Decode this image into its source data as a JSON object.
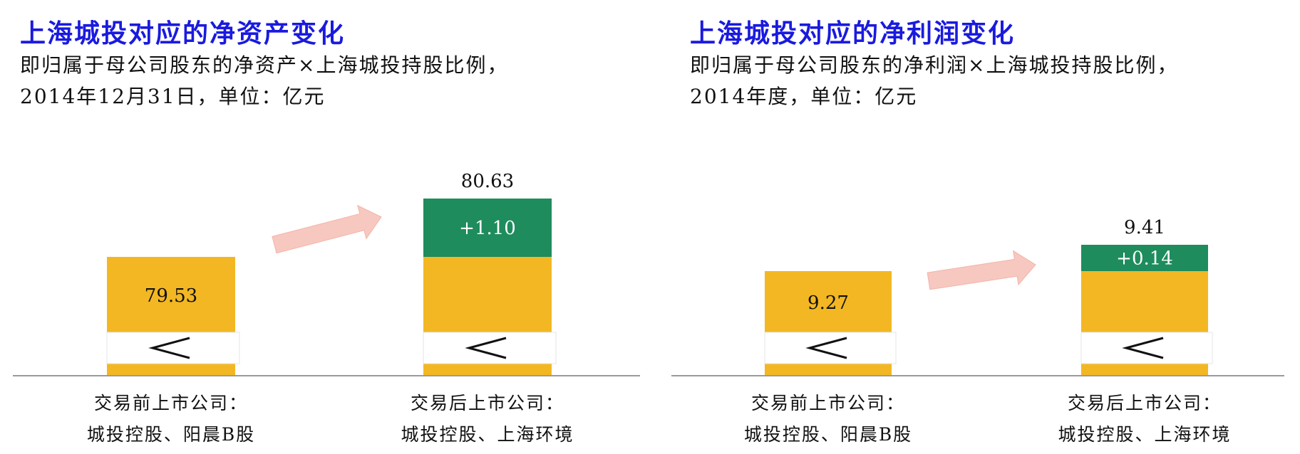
{
  "chart_data": [
    {
      "type": "bar",
      "title": "上海城投对应的净资产变化",
      "subtitle_line1": "即归属于母公司股东的净资产×上海城投持股比例，",
      "subtitle_line2": "2014年12月31日，单位：亿元",
      "categories": [
        [
          "交易前上市公司：",
          "城投控股、阳晨B股"
        ],
        [
          "交易后上市公司：",
          "城投控股、上海环境"
        ]
      ],
      "base_values": [
        79.53,
        79.53
      ],
      "increment": 1.1,
      "increment_label": "+1.10",
      "value_labels": [
        "79.53",
        "80.63"
      ],
      "axis_break": true,
      "colors": {
        "base": "#f2b723",
        "increment": "#1e8c5c",
        "arrow": "#f7c8c0"
      }
    },
    {
      "type": "bar",
      "title": "上海城投对应的净利润变化",
      "subtitle_line1": "即归属于母公司股东的净利润×上海城投持股比例，",
      "subtitle_line2": "2014年度，单位：亿元",
      "categories": [
        [
          "交易前上市公司：",
          "城投控股、阳晨B股"
        ],
        [
          "交易后上市公司：",
          "城投控股、上海环境"
        ]
      ],
      "base_values": [
        9.27,
        9.27
      ],
      "increment": 0.14,
      "increment_label": "+0.14",
      "value_labels": [
        "9.27",
        "9.41"
      ],
      "axis_break": true,
      "colors": {
        "base": "#f2b723",
        "increment": "#1e8c5c",
        "arrow": "#f7c8c0"
      }
    }
  ]
}
